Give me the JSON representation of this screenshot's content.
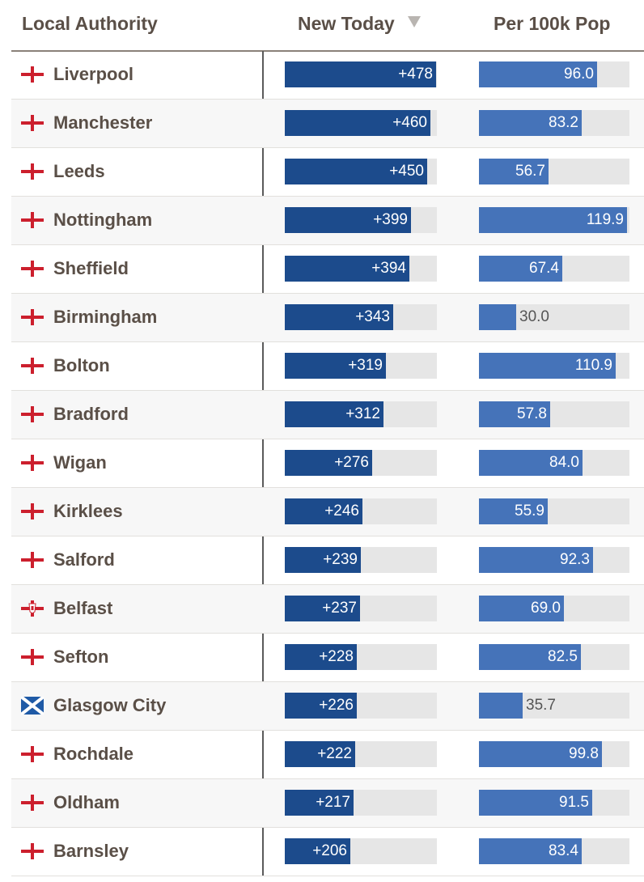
{
  "header": {
    "authority": "Local Authority",
    "new_today": "New Today",
    "per_100k": "Per 100k Pop",
    "sort_icon": "sort-descending-icon"
  },
  "colors": {
    "new_today_bar": "#1c4b8c",
    "per_100k_bar": "#4573b9",
    "track": "#e6e6e6",
    "england_cross": "#cc1f2d"
  },
  "scale": {
    "new_today_max": 480,
    "per_100k_max": 122
  },
  "rows": [
    {
      "name": "Liverpool",
      "flag": "england",
      "new_today": "+478",
      "new_value": 478,
      "per_100k": "96.0",
      "per_value": 96.0
    },
    {
      "name": "Manchester",
      "flag": "england",
      "new_today": "+460",
      "new_value": 460,
      "per_100k": "83.2",
      "per_value": 83.2
    },
    {
      "name": "Leeds",
      "flag": "england",
      "new_today": "+450",
      "new_value": 450,
      "per_100k": "56.7",
      "per_value": 56.7
    },
    {
      "name": "Nottingham",
      "flag": "england",
      "new_today": "+399",
      "new_value": 399,
      "per_100k": "119.9",
      "per_value": 119.9
    },
    {
      "name": "Sheffield",
      "flag": "england",
      "new_today": "+394",
      "new_value": 394,
      "per_100k": "67.4",
      "per_value": 67.4
    },
    {
      "name": "Birmingham",
      "flag": "england",
      "new_today": "+343",
      "new_value": 343,
      "per_100k": "30.0",
      "per_value": 30.0
    },
    {
      "name": "Bolton",
      "flag": "england",
      "new_today": "+319",
      "new_value": 319,
      "per_100k": "110.9",
      "per_value": 110.9
    },
    {
      "name": "Bradford",
      "flag": "england",
      "new_today": "+312",
      "new_value": 312,
      "per_100k": "57.8",
      "per_value": 57.8
    },
    {
      "name": "Wigan",
      "flag": "england",
      "new_today": "+276",
      "new_value": 276,
      "per_100k": "84.0",
      "per_value": 84.0
    },
    {
      "name": "Kirklees",
      "flag": "england",
      "new_today": "+246",
      "new_value": 246,
      "per_100k": "55.9",
      "per_value": 55.9
    },
    {
      "name": "Salford",
      "flag": "england",
      "new_today": "+239",
      "new_value": 239,
      "per_100k": "92.3",
      "per_value": 92.3
    },
    {
      "name": "Belfast",
      "flag": "northern-ireland",
      "new_today": "+237",
      "new_value": 237,
      "per_100k": "69.0",
      "per_value": 69.0
    },
    {
      "name": "Sefton",
      "flag": "england",
      "new_today": "+228",
      "new_value": 228,
      "per_100k": "82.5",
      "per_value": 82.5
    },
    {
      "name": "Glasgow City",
      "flag": "scotland",
      "new_today": "+226",
      "new_value": 226,
      "per_100k": "35.7",
      "per_value": 35.7
    },
    {
      "name": "Rochdale",
      "flag": "england",
      "new_today": "+222",
      "new_value": 222,
      "per_100k": "99.8",
      "per_value": 99.8
    },
    {
      "name": "Oldham",
      "flag": "england",
      "new_today": "+217",
      "new_value": 217,
      "per_100k": "91.5",
      "per_value": 91.5
    },
    {
      "name": "Barnsley",
      "flag": "england",
      "new_today": "+206",
      "new_value": 206,
      "per_100k": "83.4",
      "per_value": 83.4
    }
  ]
}
